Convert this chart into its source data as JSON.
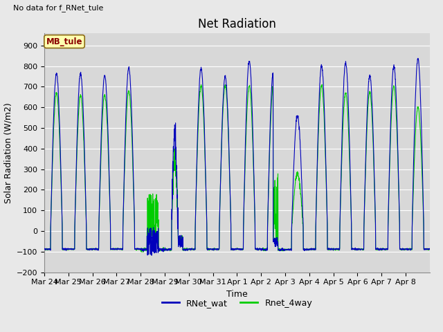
{
  "title": "Net Radiation",
  "xlabel": "Time",
  "ylabel": "Solar Radiation (W/m2)",
  "ylim": [
    -200,
    960
  ],
  "yticks": [
    -200,
    -100,
    0,
    100,
    200,
    300,
    400,
    500,
    600,
    700,
    800,
    900
  ],
  "no_data_text": "No data for f_RNet_tule",
  "legend_label_text": "MB_tule",
  "line1_label": "RNet_wat",
  "line2_label": "Rnet_4way",
  "line1_color": "#0000BB",
  "line2_color": "#00CC00",
  "fig_bg_color": "#E8E8E8",
  "axes_bg_color": "#D8D8D8",
  "grid_color": "#FFFFFF",
  "num_days": 16,
  "date_labels": [
    "Mar 24",
    "Mar 25",
    "Mar 26",
    "Mar 27",
    "Mar 28",
    "Mar 29",
    "Mar 30",
    "Mar 31",
    "Apr 1",
    "Apr 2",
    "Apr 3",
    "Apr 4",
    "Apr 5",
    "Apr 6",
    "Apr 7",
    "Apr 8"
  ],
  "title_fontsize": 12,
  "axis_label_fontsize": 9,
  "tick_fontsize": 8,
  "legend_fontsize": 9
}
